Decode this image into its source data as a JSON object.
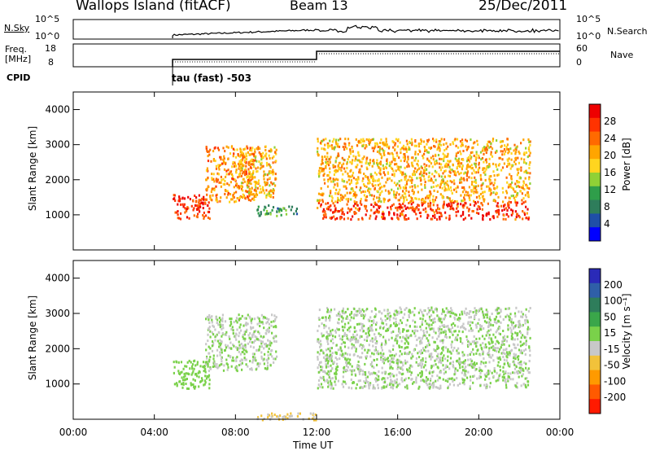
{
  "header": {
    "station": "Wallops Island (fitACF)",
    "beam": "Beam 13",
    "date": "25/Dec/2011"
  },
  "sky_panel": {
    "left_label": "N.Sky",
    "right_label": "N.Search",
    "left_ticks": [
      "10^5",
      "10^0"
    ],
    "right_ticks": [
      "10^5",
      "10^0"
    ]
  },
  "freq_panel": {
    "left_label_line1": "Freq.",
    "left_label_line2": "[MHz]",
    "right_label": "Nave",
    "left_ticks": [
      "18",
      "8"
    ],
    "right_ticks": [
      "60",
      "0"
    ]
  },
  "cpid": {
    "label": "CPID",
    "program": "tau (fast) -503"
  },
  "colors": {
    "power_scale": [
      "#0000ff",
      "#1f4fa8",
      "#2e7d5b",
      "#2f9e4a",
      "#8fd136",
      "#ffd51f",
      "#ffa500",
      "#ff6a00",
      "#ff3300",
      "#ee0000"
    ],
    "velocity_scale": [
      "#2a2ab8",
      "#2f5fa8",
      "#2e7d5b",
      "#3aa64a",
      "#7ad14a",
      "#c8c8c8",
      "#f2c23a",
      "#ff9a00",
      "#ff5a00",
      "#ff1a00"
    ]
  },
  "chart_data": [
    {
      "type": "heatmap",
      "title": "",
      "quantity": "Power",
      "xlabel": "Time UT",
      "ylabel": "Slant Range [km]",
      "xlim": [
        "00:00",
        "24:00"
      ],
      "ylim": [
        0,
        4500
      ],
      "x_ticks": [
        "00:00",
        "04:00",
        "08:00",
        "12:00",
        "16:00",
        "20:00",
        "00:00"
      ],
      "y_ticks": [
        "1000",
        "2000",
        "3000",
        "4000"
      ],
      "y_tick_values": [
        1000,
        2000,
        3000,
        4000
      ],
      "colorbar": {
        "label": "Power [dB]",
        "ticks": [
          "4",
          "8",
          "12",
          "16",
          "20",
          "24",
          "28"
        ],
        "range": [
          0,
          32
        ]
      },
      "echo_regions": [
        {
          "t_start": 4.9,
          "t_end": 6.7,
          "range_low": 900,
          "range_high": 1600,
          "value": 28
        },
        {
          "t_start": 6.5,
          "t_end": 9.0,
          "range_low": 1400,
          "range_high": 3000,
          "value": 22
        },
        {
          "t_start": 8.0,
          "t_end": 10.0,
          "range_low": 1500,
          "range_high": 3000,
          "value": 20
        },
        {
          "t_start": 9.0,
          "t_end": 11.0,
          "range_low": 1000,
          "range_high": 1300,
          "value": 10
        },
        {
          "t_start": 12.0,
          "t_end": 22.5,
          "range_low": 900,
          "range_high": 1400,
          "value": 27
        },
        {
          "t_start": 12.0,
          "t_end": 22.5,
          "range_low": 1400,
          "range_high": 3200,
          "value": 20
        }
      ]
    },
    {
      "type": "heatmap",
      "title": "",
      "quantity": "Velocity",
      "xlabel": "Time UT",
      "ylabel": "Slant Range [km]",
      "xlim": [
        "00:00",
        "24:00"
      ],
      "ylim": [
        0,
        4500
      ],
      "x_ticks": [
        "00:00",
        "04:00",
        "08:00",
        "12:00",
        "16:00",
        "20:00",
        "00:00"
      ],
      "y_ticks": [
        "1000",
        "2000",
        "3000",
        "4000"
      ],
      "y_tick_values": [
        1000,
        2000,
        3000,
        4000
      ],
      "colorbar": {
        "label": "Velocity [m s⁻¹]",
        "ticks": [
          "200",
          "100",
          "50",
          "15",
          "-15",
          "-50",
          "-100",
          "-200"
        ],
        "range": [
          -250,
          250
        ]
      },
      "echo_regions": [
        {
          "t_start": 4.9,
          "t_end": 6.7,
          "range_low": 900,
          "range_high": 1700,
          "value": 30
        },
        {
          "t_start": 6.5,
          "t_end": 10.0,
          "range_low": 1400,
          "range_high": 3000,
          "value": 0
        },
        {
          "t_start": 12.0,
          "t_end": 22.5,
          "range_low": 900,
          "range_high": 3200,
          "value": 0
        },
        {
          "t_start": 9.0,
          "t_end": 12.0,
          "range_low": 0,
          "range_high": 200,
          "value": -60
        }
      ]
    }
  ]
}
